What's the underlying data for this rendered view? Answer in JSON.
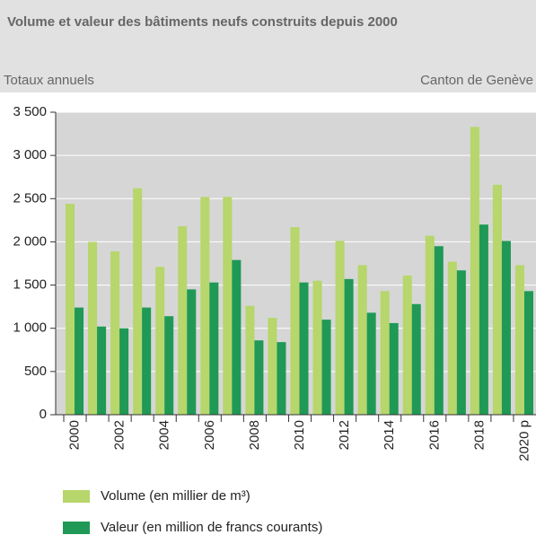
{
  "chart_data": {
    "type": "bar",
    "title": "Volume et valeur des bâtiments neufs construits depuis 2000",
    "subtitle": "Totaux annuels",
    "source_region": "Canton de Genève",
    "categories": [
      "2000",
      null,
      "2002",
      null,
      "2004",
      null,
      "2006",
      null,
      "2008",
      null,
      "2010",
      null,
      "2012",
      null,
      "2014",
      null,
      "2016",
      null,
      "2018",
      null,
      "2020 p"
    ],
    "series": [
      {
        "name": "Volume (en millier de m³)",
        "color": "#b7d66b",
        "values": [
          2440,
          2000,
          1890,
          2620,
          1710,
          2180,
          2520,
          2520,
          1260,
          1120,
          2170,
          1550,
          2010,
          1730,
          1430,
          1610,
          2070,
          1770,
          3330,
          2660,
          1730
        ]
      },
      {
        "name": "Valeur (en million de francs courants)",
        "color": "#1f9955",
        "values": [
          1240,
          1020,
          1000,
          1240,
          1140,
          1450,
          1530,
          1790,
          860,
          840,
          1530,
          1100,
          1570,
          1180,
          1060,
          1280,
          1950,
          1670,
          2200,
          2010,
          1430
        ]
      }
    ],
    "ylim": [
      0,
      3500
    ],
    "yticks": [
      0,
      500,
      {
        "value": 1000,
        "label": "1 000"
      },
      {
        "value": 1500,
        "label": "1 500"
      },
      {
        "value": 2000,
        "label": "2 000"
      },
      {
        "value": 2500,
        "label": "2 500"
      },
      {
        "value": 3000,
        "label": "3 000"
      },
      {
        "value": 3500,
        "label": "3 500"
      }
    ],
    "grid": true
  }
}
